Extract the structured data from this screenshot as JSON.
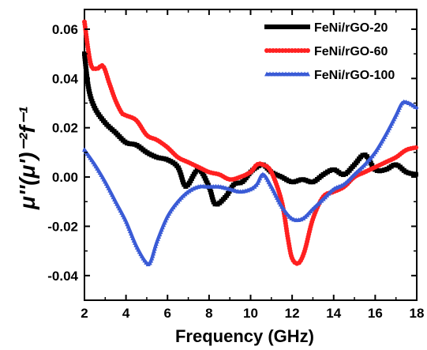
{
  "chart_data": {
    "type": "line",
    "title": "",
    "xlabel": "Frequency (GHz)",
    "ylabel": "μ''(μ')⁻²f⁻¹",
    "xlim": [
      2,
      18
    ],
    "ylim": [
      -0.05,
      0.068
    ],
    "x_ticks": [
      2,
      4,
      6,
      8,
      10,
      12,
      14,
      16,
      18
    ],
    "y_ticks": [
      -0.04,
      -0.02,
      0.0,
      0.02,
      0.04,
      0.06
    ],
    "x_tick_labels": [
      "2",
      "4",
      "6",
      "8",
      "10",
      "12",
      "14",
      "16",
      "18"
    ],
    "y_tick_labels": [
      "-0.04",
      "-0.02",
      "0.00",
      "0.02",
      "0.04",
      "0.06"
    ],
    "grid": false,
    "legend_position": "top-right",
    "series": [
      {
        "name": "FeNi/rGO-20",
        "color": "#000000",
        "marker": "square",
        "x": [
          2.0,
          2.2,
          2.5,
          3.0,
          3.5,
          4.0,
          4.5,
          5.0,
          5.5,
          6.0,
          6.5,
          6.8,
          7.0,
          7.5,
          8.0,
          8.3,
          8.8,
          9.2,
          9.6,
          10.0,
          10.3,
          10.6,
          11.0,
          11.5,
          12.0,
          12.5,
          13.0,
          13.5,
          14.0,
          14.5,
          15.0,
          15.5,
          16.0,
          16.5,
          17.0,
          17.5,
          18.0
        ],
        "y": [
          0.05,
          0.036,
          0.028,
          0.022,
          0.018,
          0.014,
          0.013,
          0.01,
          0.008,
          0.007,
          0.004,
          -0.003,
          -0.003,
          0.003,
          -0.004,
          -0.011,
          -0.008,
          -0.003,
          -0.002,
          0.002,
          0.004,
          0.005,
          0.002,
          0.0,
          -0.002,
          -0.001,
          -0.002,
          0.001,
          0.003,
          0.001,
          0.005,
          0.009,
          0.003,
          0.003,
          0.005,
          0.002,
          0.001
        ]
      },
      {
        "name": "FeNi/rGO-60",
        "color": "#ff2020",
        "marker": "circle",
        "x": [
          2.0,
          2.3,
          2.6,
          2.9,
          3.2,
          3.5,
          3.8,
          4.0,
          4.5,
          5.0,
          5.5,
          6.0,
          6.5,
          7.0,
          7.5,
          8.0,
          8.5,
          9.0,
          9.5,
          10.0,
          10.3,
          10.6,
          11.0,
          11.5,
          11.8,
          12.0,
          12.3,
          12.6,
          13.0,
          13.5,
          14.0,
          14.5,
          15.0,
          15.5,
          16.0,
          16.5,
          17.0,
          17.5,
          18.0
        ],
        "y": [
          0.063,
          0.046,
          0.044,
          0.045,
          0.038,
          0.031,
          0.026,
          0.025,
          0.023,
          0.017,
          0.015,
          0.012,
          0.008,
          0.006,
          0.004,
          0.002,
          0.001,
          -0.001,
          0.0,
          0.002,
          0.005,
          0.005,
          0.002,
          -0.01,
          -0.025,
          -0.033,
          -0.035,
          -0.03,
          -0.017,
          -0.008,
          -0.006,
          -0.004,
          0.0,
          0.002,
          0.004,
          0.006,
          0.008,
          0.011,
          0.012
        ]
      },
      {
        "name": "FeNi/rGO-100",
        "color": "#3a5bd6",
        "marker": "triangle",
        "x": [
          2.0,
          2.5,
          3.0,
          3.5,
          4.0,
          4.5,
          5.0,
          5.2,
          5.5,
          6.0,
          6.5,
          7.0,
          7.5,
          8.0,
          8.5,
          9.0,
          9.5,
          10.0,
          10.3,
          10.6,
          11.0,
          11.5,
          12.0,
          12.5,
          13.0,
          13.5,
          14.0,
          14.5,
          15.0,
          15.5,
          16.0,
          16.5,
          17.0,
          17.3,
          17.6,
          18.0
        ],
        "y": [
          0.011,
          0.005,
          -0.002,
          -0.01,
          -0.018,
          -0.028,
          -0.035,
          -0.034,
          -0.026,
          -0.016,
          -0.01,
          -0.006,
          -0.004,
          -0.004,
          -0.004,
          -0.005,
          -0.006,
          -0.005,
          -0.003,
          0.001,
          -0.004,
          -0.012,
          -0.017,
          -0.017,
          -0.013,
          -0.009,
          -0.005,
          -0.003,
          0.001,
          0.005,
          0.01,
          0.017,
          0.025,
          0.03,
          0.03,
          0.028
        ]
      }
    ]
  }
}
